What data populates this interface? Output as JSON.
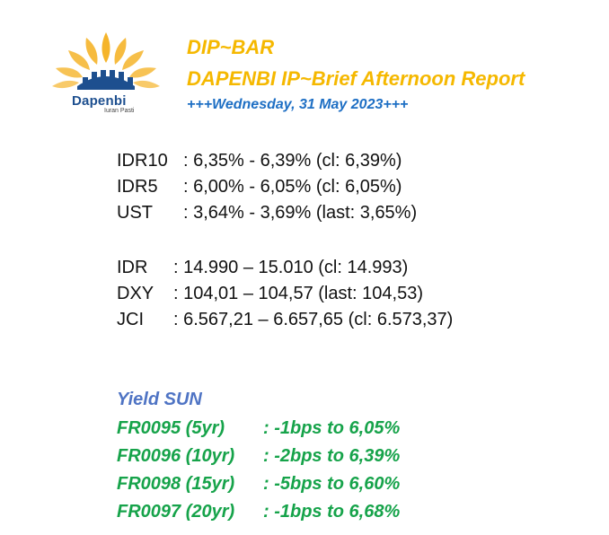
{
  "logo": {
    "name": "Dapenbi",
    "tagline": "Iuran Pasti",
    "colors": {
      "petal": "#f5b42a",
      "building": "#1d4f8f"
    }
  },
  "header": {
    "title": "DIP~BAR",
    "subtitle": "DAPENBI IP~Brief Afternoon Report",
    "date_line": "+++Wednesday, 31 May 2023+++"
  },
  "market_block_1": [
    {
      "code": "IDR10",
      "value": ": 6,35% - 6,39% (cl: 6,39%)"
    },
    {
      "code": "IDR5",
      "value": ": 6,00% - 6,05% (cl: 6,05%)"
    },
    {
      "code": "UST",
      "value": ": 3,64% - 3,69% (last: 3,65%)"
    }
  ],
  "market_block_2": [
    {
      "code": "IDR",
      "value": ": 14.990 – 15.010 (cl: 14.993)"
    },
    {
      "code": "DXY",
      "value": ": 104,01 – 104,57 (last: 104,53)"
    },
    {
      "code": "JCI",
      "value": ": 6.567,21 – 6.657,65 (cl: 6.573,37)"
    }
  ],
  "yield": {
    "heading": "Yield SUN",
    "rows": [
      {
        "series": "FR0095 (5yr)",
        "value": ": -1bps to 6,05%"
      },
      {
        "series": "FR0096 (10yr)",
        "value": ": -2bps to 6,39%"
      },
      {
        "series": "FR0098 (15yr)",
        "value": ": -5bps to 6,60%"
      },
      {
        "series": "FR0097 (20yr)",
        "value": ": -1bps to 6,68%"
      }
    ]
  },
  "colors": {
    "title": "#f5b800",
    "date": "#1e6fc4",
    "yield_heading": "#4f74c4",
    "yield_rows": "#16a34a"
  }
}
